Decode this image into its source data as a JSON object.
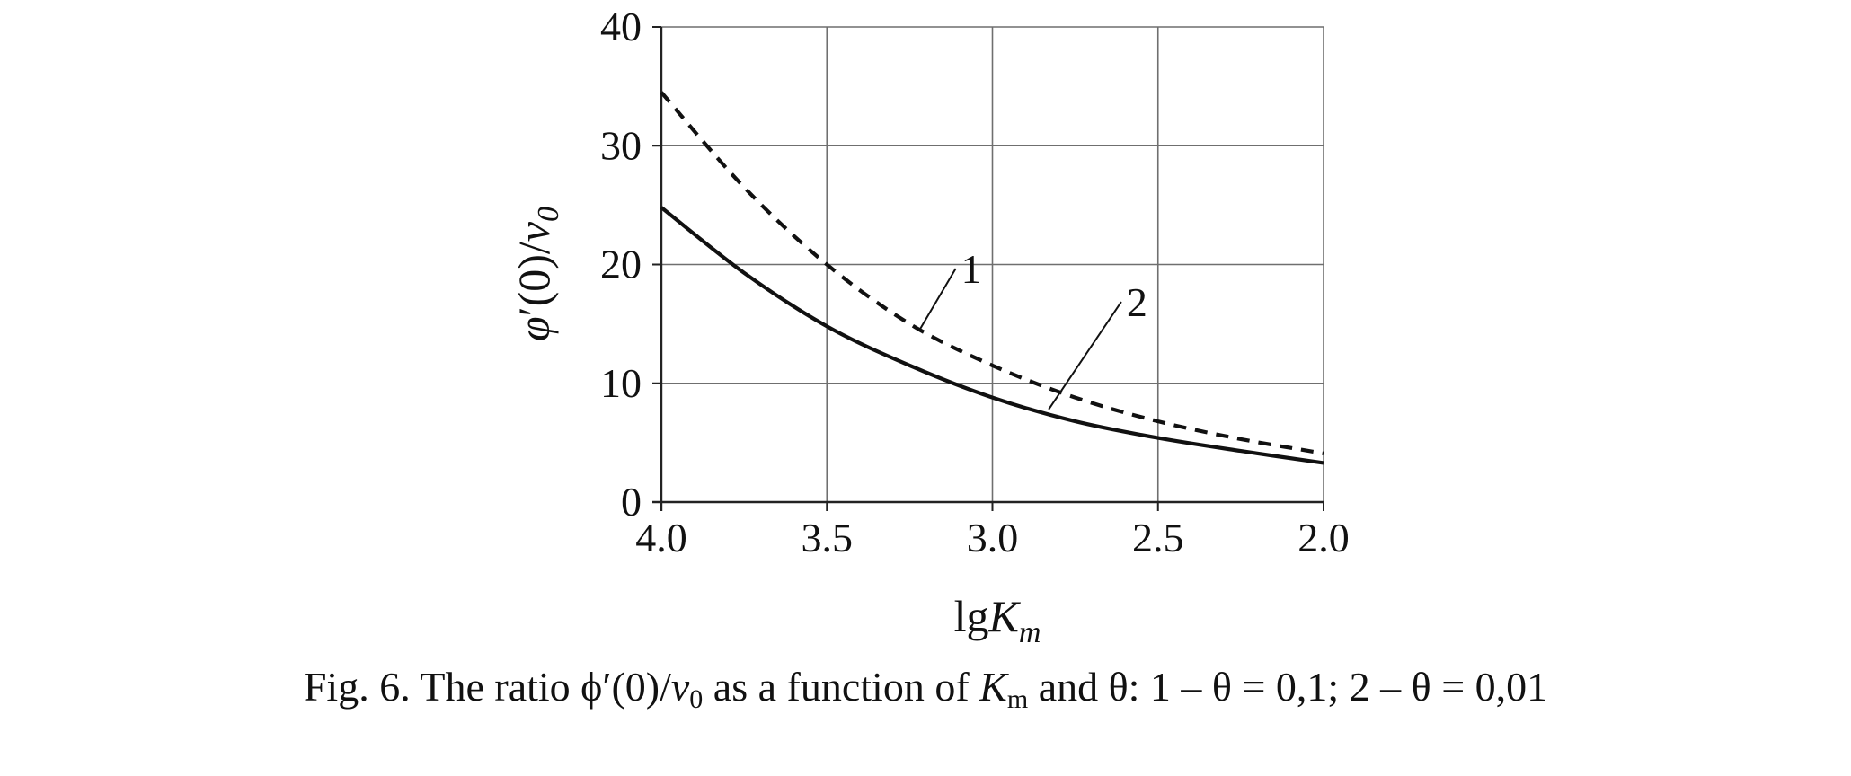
{
  "chart_data": {
    "type": "line",
    "xlabel": {
      "base": "lg",
      "italic": "K",
      "sub": "m"
    },
    "ylabel": {
      "italic": "φ",
      "mid": "′(0)/",
      "italic2": "v",
      "sub": "0"
    },
    "xlim": [
      4.0,
      2.0
    ],
    "ylim": [
      0,
      40
    ],
    "x_reversed": true,
    "x_ticks": [
      "4.0",
      "3.5",
      "3.0",
      "2.5",
      "2.0"
    ],
    "x_tick_values": [
      4.0,
      3.5,
      3.0,
      2.5,
      2.0
    ],
    "y_ticks": [
      "0",
      "10",
      "20",
      "30",
      "40"
    ],
    "y_tick_values": [
      0,
      10,
      20,
      30,
      40
    ],
    "grid": true,
    "series": [
      {
        "name": "1",
        "style": "dashed",
        "x": [
          4.0,
          3.75,
          3.5,
          3.25,
          3.0,
          2.75,
          2.5,
          2.25,
          2.0
        ],
        "y": [
          34.5,
          26.5,
          20.0,
          15.0,
          11.5,
          8.8,
          6.8,
          5.3,
          4.1
        ]
      },
      {
        "name": "2",
        "style": "solid",
        "x": [
          4.0,
          3.75,
          3.5,
          3.25,
          3.0,
          2.75,
          2.5,
          2.25,
          2.0
        ],
        "y": [
          24.8,
          19.3,
          14.8,
          11.5,
          8.8,
          6.8,
          5.4,
          4.3,
          3.3
        ]
      }
    ],
    "annotations": [
      {
        "text": "1",
        "x": 3.1,
        "y": 18.3,
        "arrow_to": {
          "x": 3.22,
          "y": 14.5
        }
      },
      {
        "text": "2",
        "x": 2.6,
        "y": 15.5,
        "arrow_to": {
          "x": 2.83,
          "y": 7.8
        }
      }
    ]
  },
  "caption": {
    "prefix": "Fig. 6. The ratio ϕ′(0)/",
    "v": "v",
    "v_sub": "0",
    "mid": " as a function of ",
    "K": "K",
    "K_sub": "m",
    "suffix": " and θ: 1 – θ = 0,1; 2 – θ = 0,01"
  }
}
